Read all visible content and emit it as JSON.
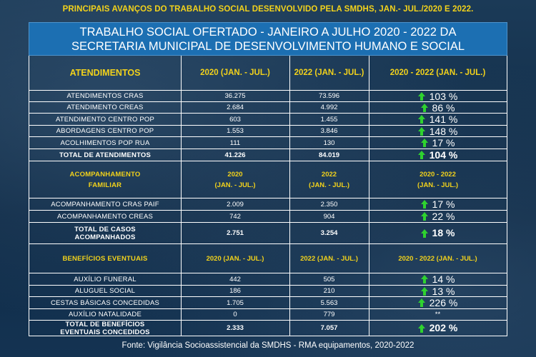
{
  "page": {
    "top_title": "PRINCIPAIS AVANÇOS DO TRABALHO SOCIAL DESENVOLVIDO PELA SMDHS, JAN.- JUL./2020 E 2022.",
    "banner_line1": "TRABALHO SOCIAL OFERTADO -  JANEIRO A JULHO 2020 - 2022 DA",
    "banner_line2": "SECRETARIA MUNICIPAL DE DESENVOLVIMENTO HUMANO E SOCIAL",
    "source": "Fonte: Vigilância Socioassistencial da SMDHS - RMA equipamentos, 2020-2022"
  },
  "sections": [
    {
      "header": {
        "label": "ATENDIMENTOS",
        "col2": "2020 (JAN. - JUL.)",
        "col3": "2022 (JAN. - JUL.)",
        "col4": "2020 - 2022 (JAN. - JUL.)"
      },
      "rows": [
        {
          "label": "ATENDIMENTOS CRAS",
          "v2020": "36.275",
          "v2022": "73.596",
          "pct": "103 %"
        },
        {
          "label": "ATENDIMENTO CREAS",
          "v2020": "2.684",
          "v2022": "4.992",
          "pct": "86 %"
        },
        {
          "label": "ATENDIMENTO CENTRO POP",
          "v2020": "603",
          "v2022": "1.455",
          "pct": "141 %"
        },
        {
          "label": "ABORDAGENS CENTRO POP",
          "v2020": "1.553",
          "v2022": "3.846",
          "pct": "148 %"
        },
        {
          "label": "ACOLHIMENTOS POP RUA",
          "v2020": "111",
          "v2022": "130",
          "pct": "17 %"
        }
      ],
      "total": {
        "label": "TOTAL DE ATENDIMENTOS",
        "v2020": "41.226",
        "v2022": "84.019",
        "pct": "104 %"
      }
    },
    {
      "header": {
        "label_line1": "ACOMPANHAMENTO",
        "label_line2": "FAMILIAR",
        "col2_line1": "2020",
        "col2_line2": "(JAN. - JUL.)",
        "col3_line1": "2022",
        "col3_line2": "(JAN. - JUL.)",
        "col4_line1": "2020 - 2022",
        "col4_line2": "(JAN. - JUL.)"
      },
      "rows": [
        {
          "label": "ACOMPANHAMENTO CRAS PAIF",
          "v2020": "2.009",
          "v2022": "2.350",
          "pct": "17 %"
        },
        {
          "label": "ACOMPANHAMENTO CREAS",
          "v2020": "742",
          "v2022": "904",
          "pct": "22 %"
        }
      ],
      "total": {
        "label_line1": "TOTAL DE CASOS",
        "label_line2": "ACOMPANHADOS",
        "v2020": "2.751",
        "v2022": "3.254",
        "pct": "18 %"
      }
    },
    {
      "header": {
        "label": "BENEFÍCIOS EVENTUAIS",
        "col2": "2020 (JAN. - JUL.)",
        "col3": "2022 (JAN. - JUL.)",
        "col4": "2020 - 2022 (JAN. - JUL.)"
      },
      "rows": [
        {
          "label": "AUXÍLIO FUNERAL",
          "v2020": "442",
          "v2022": "505",
          "pct": "14 %"
        },
        {
          "label": "ALUGUEL SOCIAL",
          "v2020": "186",
          "v2022": "210",
          "pct": "13 %"
        },
        {
          "label": "CESTAS BÁSICAS CONCEDIDAS",
          "v2020": "1.705",
          "v2022": "5.563",
          "pct": "226 %"
        },
        {
          "label": "AUXÍLIO NATALIDADE",
          "v2020": "0",
          "v2022": "779",
          "pct": "**"
        }
      ],
      "total": {
        "label_line1": "TOTAL DE BENEFÍCIOS",
        "label_line2": "EVENTUAIS CONCEDIDOS",
        "v2020": "2.333",
        "v2022": "7.057",
        "pct": "202 %"
      }
    }
  ],
  "colors": {
    "title_yellow": "#f2d21b",
    "banner_blue": "#1c6fb2",
    "arrow_green": "#2fd22f"
  },
  "icons": {
    "increase": "green-up-arrow-icon"
  }
}
